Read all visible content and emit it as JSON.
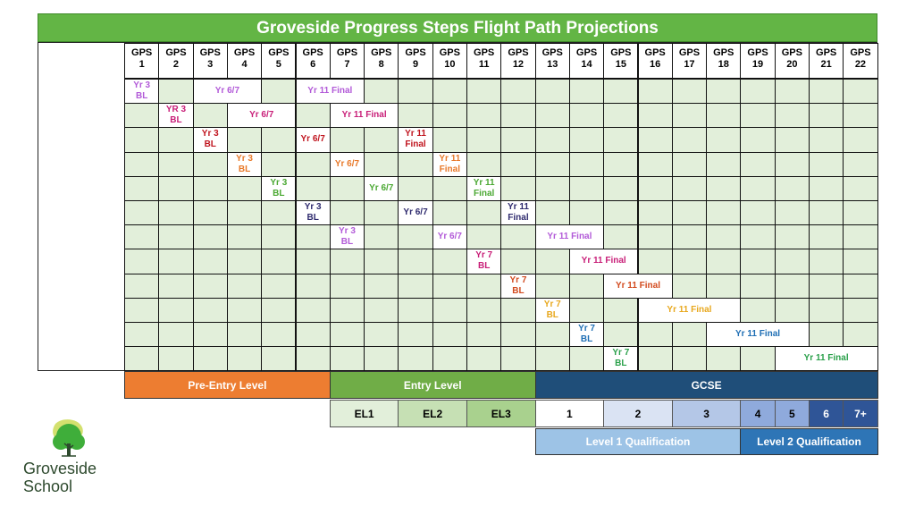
{
  "title": "Groveside Progress Steps Flight Path Projections",
  "headers": [
    "GPS\n1",
    "GPS\n2",
    "GPS\n3",
    "GPS\n4",
    "GPS\n5",
    "GPS\n6",
    "GPS\n7",
    "GPS\n8",
    "GPS\n9",
    "GPS\n10",
    "GPS\n11",
    "GPS\n12",
    "GPS\n13",
    "GPS\n14",
    "GPS\n15",
    "GPS\n16",
    "GPS\n17",
    "GPS\n18",
    "GPS\n19",
    "GPS\n20",
    "GPS\n21",
    "GPS\n22"
  ],
  "rows": [
    [
      {
        "col": 0,
        "span": 1,
        "text": "Yr 3\nBL",
        "color": "#b25ad8"
      },
      {
        "col": 2,
        "span": 2,
        "text": "Yr 6/7",
        "color": "#b25ad8"
      },
      {
        "col": 5,
        "span": 2,
        "text": "Yr 11 Final",
        "color": "#b25ad8"
      }
    ],
    [
      {
        "col": 1,
        "span": 1,
        "text": "YR 3\nBL",
        "color": "#c81e78"
      },
      {
        "col": 3,
        "span": 2,
        "text": "Yr 6/7",
        "color": "#c81e78"
      },
      {
        "col": 6,
        "span": 2,
        "text": "Yr 11 Final",
        "color": "#c81e78"
      }
    ],
    [
      {
        "col": 2,
        "span": 1,
        "text": "Yr 3\nBL",
        "color": "#c0141e"
      },
      {
        "col": 5,
        "span": 1,
        "text": "Yr 6/7",
        "color": "#c0141e"
      },
      {
        "col": 8,
        "span": 1,
        "text": "Yr 11\nFinal",
        "color": "#c0141e"
      }
    ],
    [
      {
        "col": 3,
        "span": 1,
        "text": "Yr 3\nBL",
        "color": "#e8792a"
      },
      {
        "col": 6,
        "span": 1,
        "text": "Yr 6/7",
        "color": "#e8792a"
      },
      {
        "col": 9,
        "span": 1,
        "text": "Yr 11\nFinal",
        "color": "#e8792a"
      }
    ],
    [
      {
        "col": 4,
        "span": 1,
        "text": "Yr 3\nBL",
        "color": "#4aa832"
      },
      {
        "col": 7,
        "span": 1,
        "text": "Yr 6/7",
        "color": "#4aa832"
      },
      {
        "col": 10,
        "span": 1,
        "text": "Yr 11\nFinal",
        "color": "#4aa832"
      }
    ],
    [
      {
        "col": 5,
        "span": 1,
        "text": "Yr 3\nBL",
        "color": "#2e2a6e"
      },
      {
        "col": 8,
        "span": 1,
        "text": "Yr 6/7",
        "color": "#2e2a6e"
      },
      {
        "col": 11,
        "span": 1,
        "text": "Yr 11\nFinal",
        "color": "#2e2a6e"
      }
    ],
    [
      {
        "col": 6,
        "span": 1,
        "text": "Yr 3\nBL",
        "color": "#b25ad8"
      },
      {
        "col": 9,
        "span": 1,
        "text": "Yr 6/7",
        "color": "#b25ad8"
      },
      {
        "col": 12,
        "span": 2,
        "text": "Yr 11 Final",
        "color": "#b25ad8"
      }
    ],
    [
      {
        "col": 10,
        "span": 1,
        "text": "Yr 7\nBL",
        "color": "#c81e78"
      },
      {
        "col": 13,
        "span": 2,
        "text": "Yr 11 Final",
        "color": "#c81e78"
      }
    ],
    [
      {
        "col": 11,
        "span": 1,
        "text": "Yr 7\nBL",
        "color": "#d24a1e"
      },
      {
        "col": 14,
        "span": 2,
        "text": "Yr 11 Final",
        "color": "#d24a1e"
      }
    ],
    [
      {
        "col": 12,
        "span": 1,
        "text": "Yr 7\nBL",
        "color": "#e8a81e"
      },
      {
        "col": 15,
        "span": 3,
        "text": "Yr 11 Final",
        "color": "#e8a81e"
      }
    ],
    [
      {
        "col": 13,
        "span": 1,
        "text": "Yr 7\nBL",
        "color": "#1e6eb4"
      },
      {
        "col": 17,
        "span": 3,
        "text": "Yr 11 Final",
        "color": "#1e6eb4"
      }
    ],
    [
      {
        "col": 14,
        "span": 1,
        "text": "Yr 7\nBL",
        "color": "#2aa04a"
      },
      {
        "col": 19,
        "span": 3,
        "text": "Yr 11 Final",
        "color": "#2aa04a"
      }
    ]
  ],
  "bands": [
    {
      "label": "Pre-Entry Level",
      "start": 0,
      "span": 6,
      "bg": "#ed7d31"
    },
    {
      "label": "Entry Level",
      "start": 6,
      "span": 6,
      "bg": "#70ad47"
    },
    {
      "label": "GCSE",
      "start": 12,
      "span": 10,
      "bg": "#1f4e79"
    }
  ],
  "levels": [
    {
      "label": "EL1",
      "start": 6,
      "span": 2,
      "bg": "#e2efda",
      "fg": "#000"
    },
    {
      "label": "EL2",
      "start": 8,
      "span": 2,
      "bg": "#c6e0b4",
      "fg": "#000"
    },
    {
      "label": "EL3",
      "start": 10,
      "span": 2,
      "bg": "#a9d18e",
      "fg": "#000"
    },
    {
      "label": "1",
      "start": 12,
      "span": 2,
      "bg": "#ffffff",
      "fg": "#000"
    },
    {
      "label": "2",
      "start": 14,
      "span": 2,
      "bg": "#dae3f3",
      "fg": "#000"
    },
    {
      "label": "3",
      "start": 16,
      "span": 2,
      "bg": "#b4c7e7",
      "fg": "#000"
    },
    {
      "label": "4",
      "start": 18,
      "span": 1,
      "bg": "#8faadc",
      "fg": "#000"
    },
    {
      "label": "5",
      "start": 19,
      "span": 1,
      "bg": "#8faadc",
      "fg": "#000"
    },
    {
      "label": "6",
      "start": 20,
      "span": 1,
      "bg": "#2f5597",
      "fg": "#fff"
    },
    {
      "label": "7+",
      "start": 21,
      "span": 1,
      "bg": "#2f5597",
      "fg": "#fff"
    }
  ],
  "qualifications": [
    {
      "label": "Level 1 Qualification",
      "start": 12,
      "span": 6,
      "bg": "#9dc3e6"
    },
    {
      "label": "Level 2 Qualification",
      "start": 18,
      "span": 4,
      "bg": "#2e75b6"
    }
  ],
  "logo": {
    "line1": "Groveside",
    "line2": "School",
    "icon": "tree-icon"
  }
}
